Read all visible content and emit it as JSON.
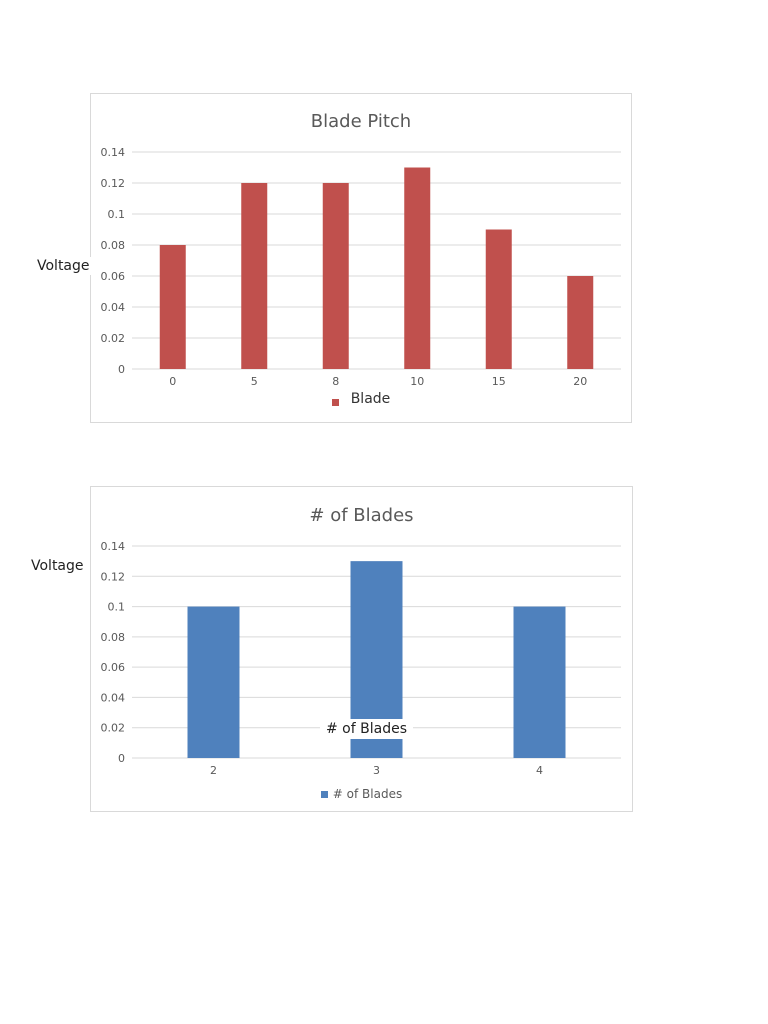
{
  "chart_data": [
    {
      "type": "bar",
      "title": "Blade Pitch",
      "ylabel": "Voltage",
      "xlabel": "",
      "categories": [
        "0",
        "5",
        "8",
        "10",
        "15",
        "20"
      ],
      "series": [
        {
          "name": "Blade",
          "values": [
            0.08,
            0.12,
            0.12,
            0.13,
            0.09,
            0.06
          ],
          "color": "#c0504d"
        }
      ],
      "ylim": [
        0,
        0.14
      ],
      "yticks": [
        "0",
        "0.02",
        "0.04",
        "0.06",
        "0.08",
        "0.1",
        "0.12",
        "0.14"
      ],
      "grid": true,
      "legend": "bottom"
    },
    {
      "type": "bar",
      "title": "# of Blades",
      "ylabel": "Voltage",
      "xlabel": "# of Blades",
      "categories": [
        "2",
        "3",
        "4"
      ],
      "series": [
        {
          "name": "# of Blades",
          "values": [
            0.1,
            0.13,
            0.1
          ],
          "color": "#4f81bd"
        }
      ],
      "ylim": [
        0,
        0.14
      ],
      "yticks": [
        "0",
        "0.02",
        "0.04",
        "0.06",
        "0.08",
        "0.1",
        "0.12",
        "0.14"
      ],
      "grid": true,
      "legend": "bottom"
    }
  ]
}
